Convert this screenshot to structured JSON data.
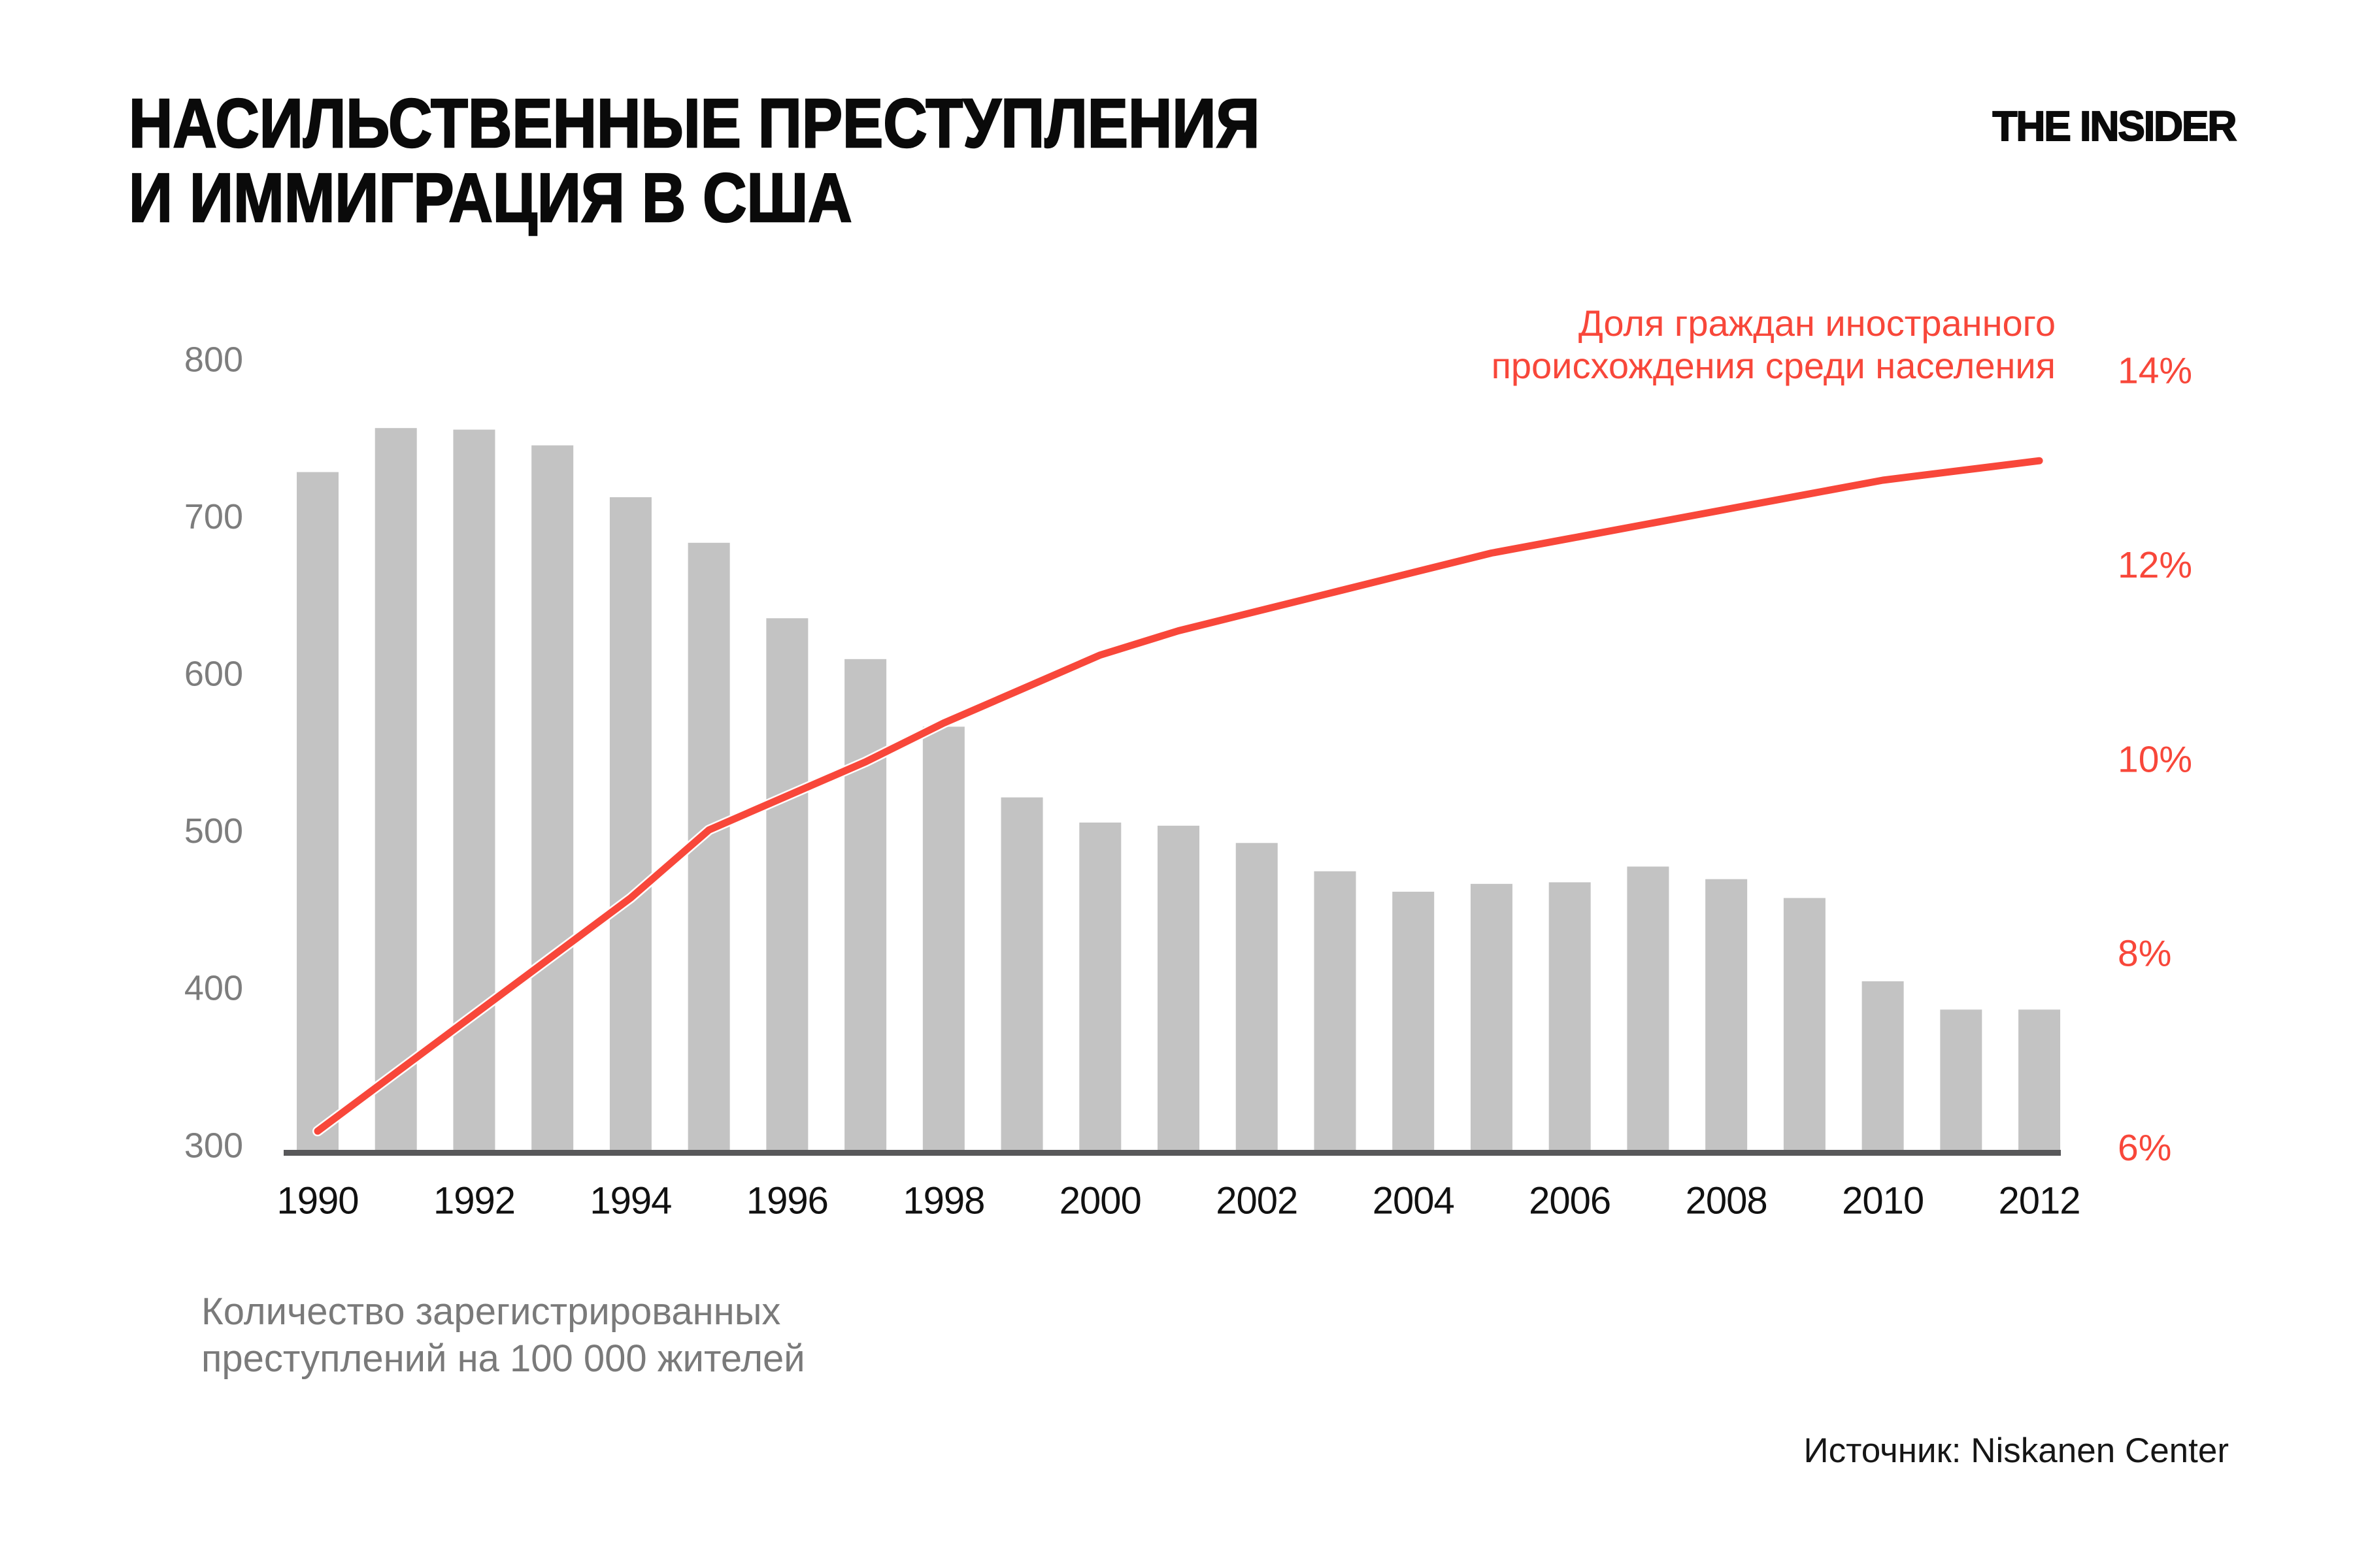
{
  "header": {
    "title_lines": [
      "НАСИЛЬСТВЕННЫЕ ПРЕСТУПЛЕНИЯ",
      "И ИММИГРАЦИЯ В США"
    ],
    "logo": "THE INSIDER"
  },
  "annotation": {
    "lines": [
      "Доля граждан иностранного",
      "происхождения среди населения"
    ]
  },
  "caption_lines": [
    "Количество зарегистрированных",
    "преступлений на 100 000 жителей"
  ],
  "source": "Источник: Niskanen Center",
  "colors": {
    "accent_red": "#f8473a",
    "bar_gray": "#c3c3c3",
    "baseline_gray": "#58585a",
    "axis_left_text": "#7d7d7d",
    "axis_bottom_text": "#111111",
    "caption_gray": "#7a7a7a"
  },
  "chart_data": {
    "type": "bar+line",
    "categories": [
      1990,
      1991,
      1992,
      1993,
      1994,
      1995,
      1996,
      1997,
      1998,
      1999,
      2000,
      2001,
      2002,
      2003,
      2004,
      2005,
      2006,
      2007,
      2008,
      2009,
      2010,
      2011,
      2012
    ],
    "series": [
      {
        "name": "Количество зарегистрированных преступлений на 100 000 жителей",
        "type": "bar",
        "axis": "left",
        "values": [
          730,
          758,
          757,
          747,
          714,
          685,
          637,
          611,
          568,
          523,
          507,
          505,
          494,
          476,
          463,
          468,
          469,
          479,
          471,
          459,
          406,
          388,
          388
        ]
      },
      {
        "name": "Доля граждан иностранного происхождения среди населения",
        "type": "line",
        "axis": "right",
        "values": [
          6.2,
          6.8,
          7.4,
          8.0,
          8.6,
          9.3,
          9.65,
          10.0,
          10.4,
          10.75,
          11.1,
          11.35,
          11.55,
          11.75,
          11.95,
          12.15,
          12.3,
          12.45,
          12.6,
          12.75,
          12.9,
          13.0,
          13.1
        ]
      }
    ],
    "left_axis": {
      "ticks": [
        800,
        700,
        600,
        500,
        400,
        300
      ],
      "min": 300,
      "max": 800
    },
    "right_axis": {
      "ticks": [
        "14%",
        "12%",
        "10%",
        "8%",
        "6%"
      ],
      "tick_values": [
        14,
        12,
        10,
        8,
        6
      ],
      "min": 6,
      "max": 14
    },
    "x_axis": {
      "tick_years": [
        1990,
        1992,
        1994,
        1996,
        1998,
        2000,
        2002,
        2004,
        2006,
        2008,
        2010,
        2012
      ]
    },
    "grid": false,
    "legend_position": "annotation-top-right"
  }
}
